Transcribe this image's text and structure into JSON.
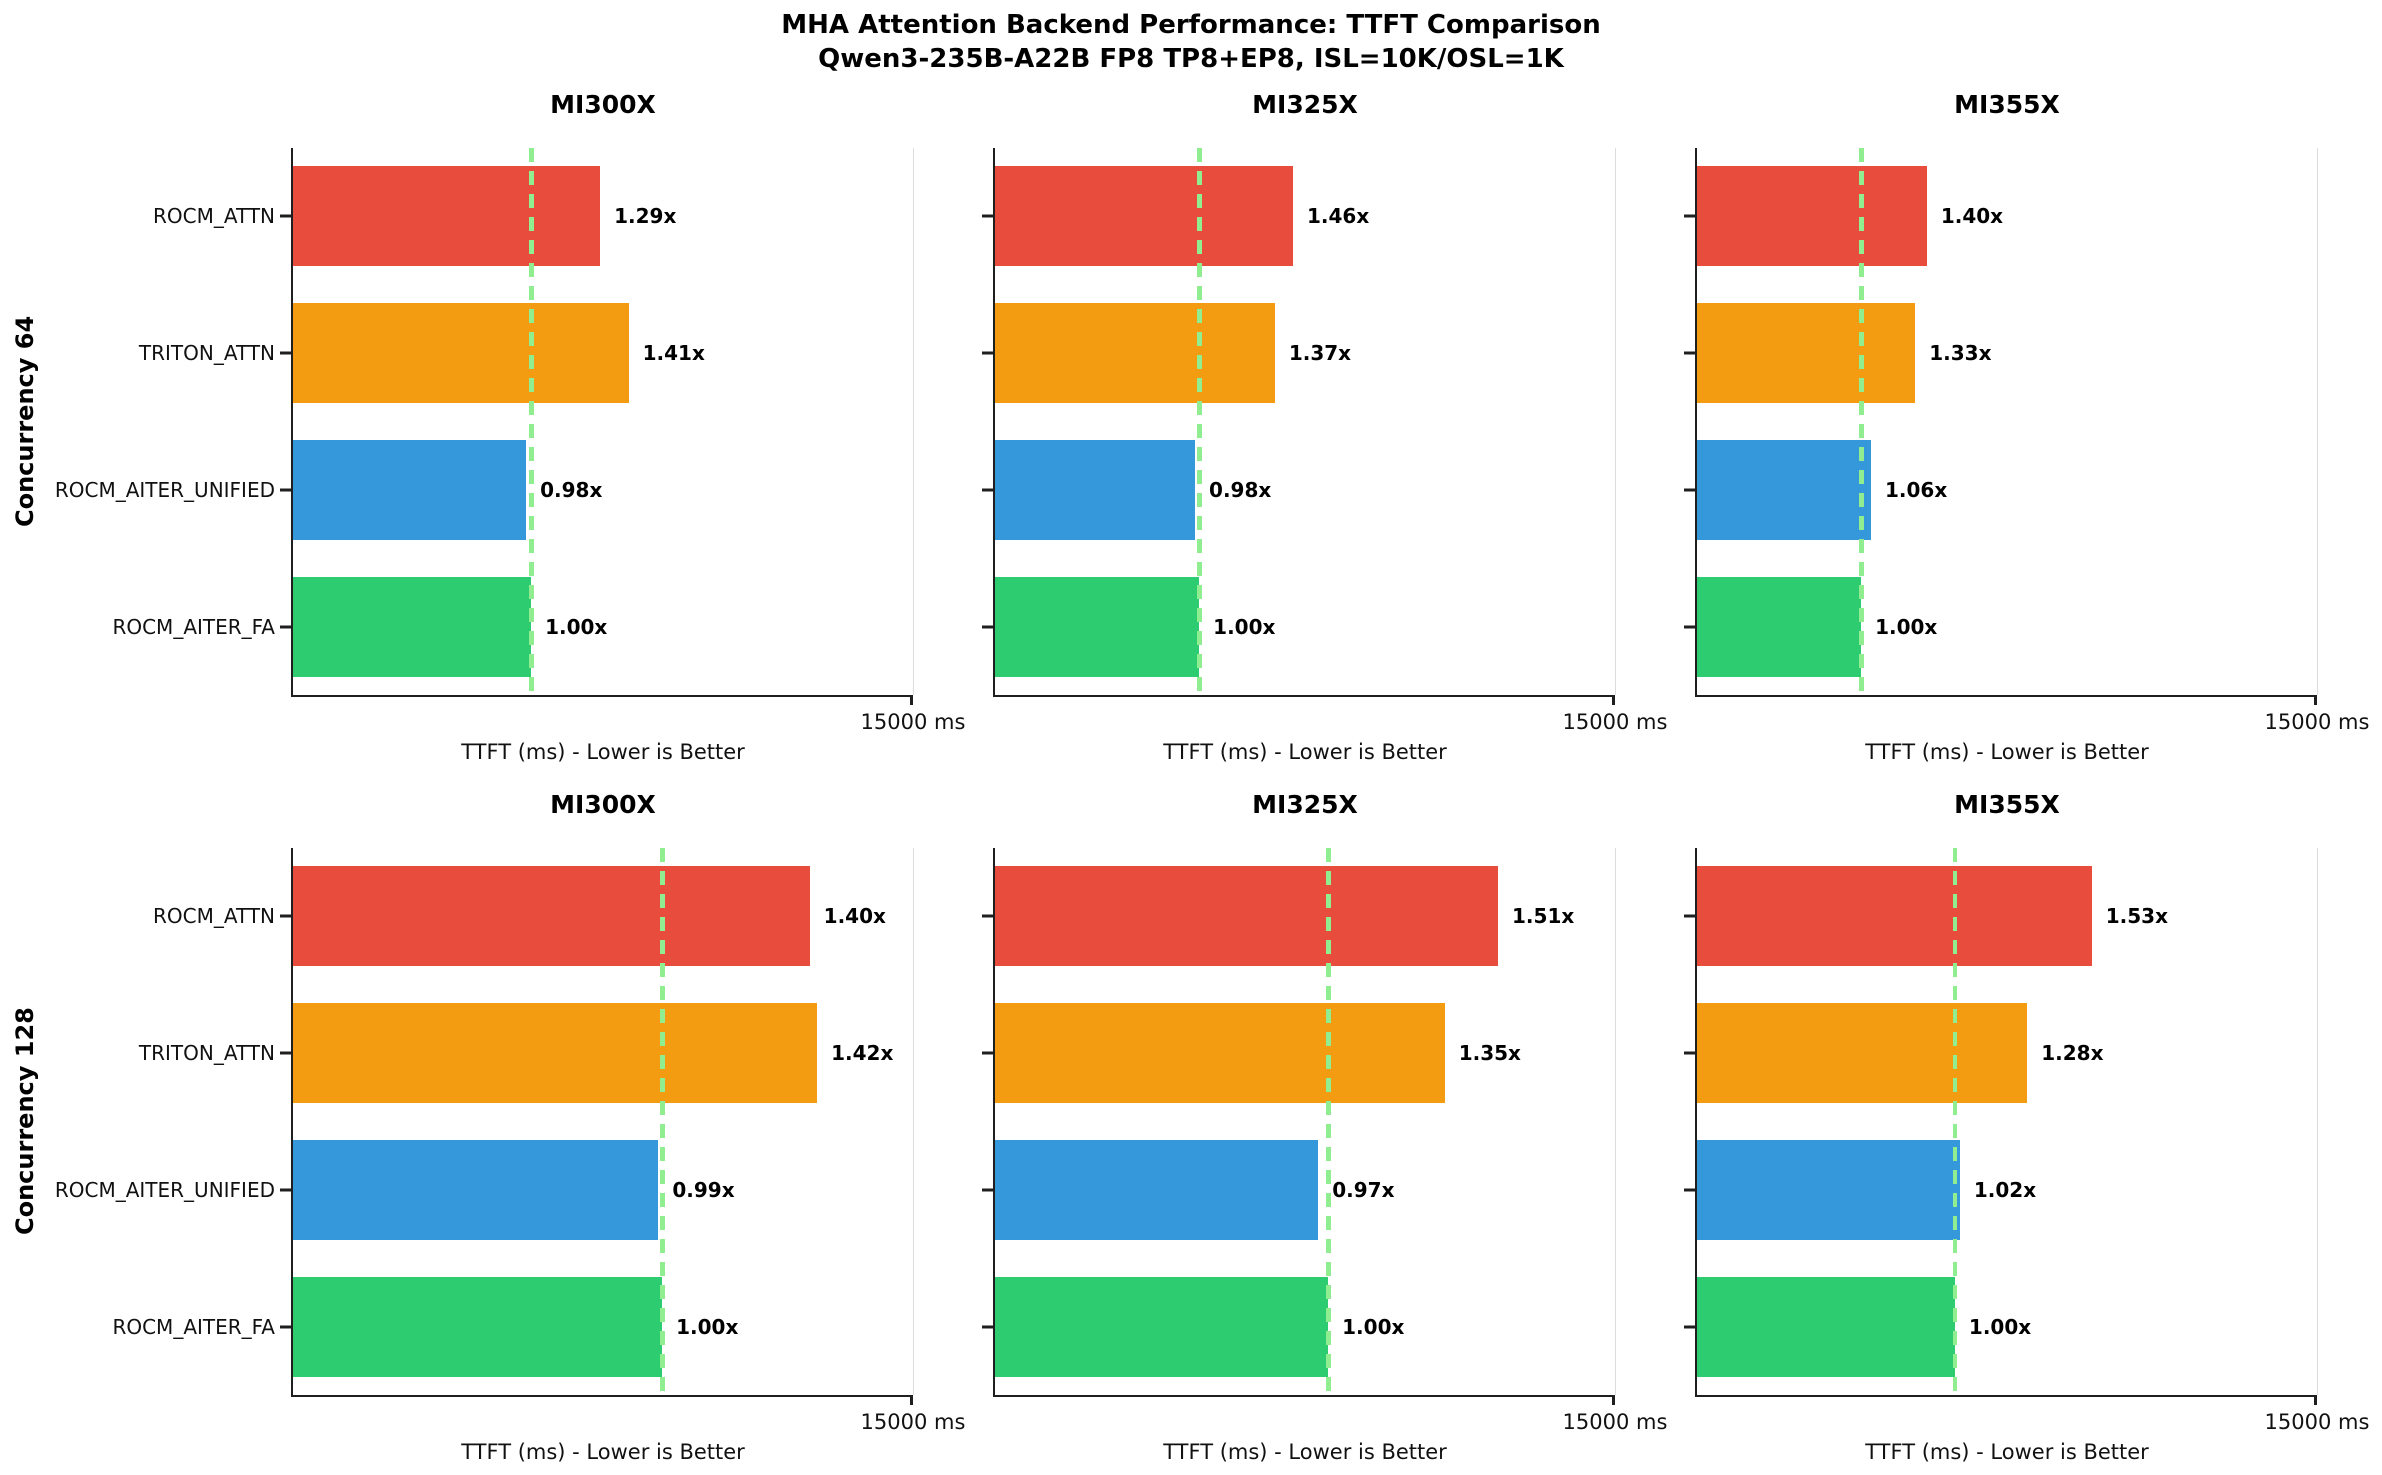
{
  "title": {
    "line1": "MHA Attention Backend Performance: TTFT Comparison",
    "line2": "Qwen3-235B-A22B FP8 TP8+EP8, ISL=10K/OSL=1K"
  },
  "colors": {
    "bar_colors": [
      "#E74C3C",
      "#F39C12",
      "#3498DB",
      "#2ECC71"
    ],
    "baseline_dash": "#90EE90",
    "spine": "#1f1f1f",
    "faint_right_spine": "#dcdcdc"
  },
  "chart_data": {
    "type": "bar",
    "orientation": "horizontal",
    "categories": [
      "ROCM_ATTN",
      "TRITON_ATTN",
      "ROCM_AITER_UNIFIED",
      "ROCM_AITER_FA"
    ],
    "xlabel": "TTFT (ms) - Lower is Better",
    "xlim": [
      0,
      15000
    ],
    "x_tick_label": "15000 ms",
    "baseline_note": "dashed vertical line marks the ROCM_AITER_FA (1.00x) baseline TTFT",
    "rows": [
      {
        "row_label": "Concurrency 64",
        "subplots": [
          {
            "title": "MI300X",
            "ttft_ms": [
              7430,
              8120,
              5640,
              5760
            ],
            "speedup_labels": [
              "1.29x",
              "1.41x",
              "0.98x",
              "1.00x"
            ],
            "baseline_ms": 5760
          },
          {
            "title": "MI325X",
            "ttft_ms": [
              7210,
              6770,
              4840,
              4940
            ],
            "speedup_labels": [
              "1.46x",
              "1.37x",
              "0.98x",
              "1.00x"
            ],
            "baseline_ms": 4940
          },
          {
            "title": "MI355X",
            "ttft_ms": [
              5560,
              5280,
              4210,
              3970
            ],
            "speedup_labels": [
              "1.40x",
              "1.33x",
              "1.06x",
              "1.00x"
            ],
            "baseline_ms": 3970
          }
        ]
      },
      {
        "row_label": "Concurrency 128",
        "subplots": [
          {
            "title": "MI300X",
            "ttft_ms": [
              12500,
              12680,
              8840,
              8930
            ],
            "speedup_labels": [
              "1.40x",
              "1.42x",
              "0.99x",
              "1.00x"
            ],
            "baseline_ms": 8930
          },
          {
            "title": "MI325X",
            "ttft_ms": [
              12170,
              10880,
              7820,
              8060
            ],
            "speedup_labels": [
              "1.51x",
              "1.35x",
              "0.97x",
              "1.00x"
            ],
            "baseline_ms": 8060
          },
          {
            "title": "MI355X",
            "ttft_ms": [
              9550,
              7990,
              6360,
              6240
            ],
            "speedup_labels": [
              "1.53x",
              "1.28x",
              "1.02x",
              "1.00x"
            ],
            "baseline_ms": 6240
          }
        ]
      }
    ]
  }
}
